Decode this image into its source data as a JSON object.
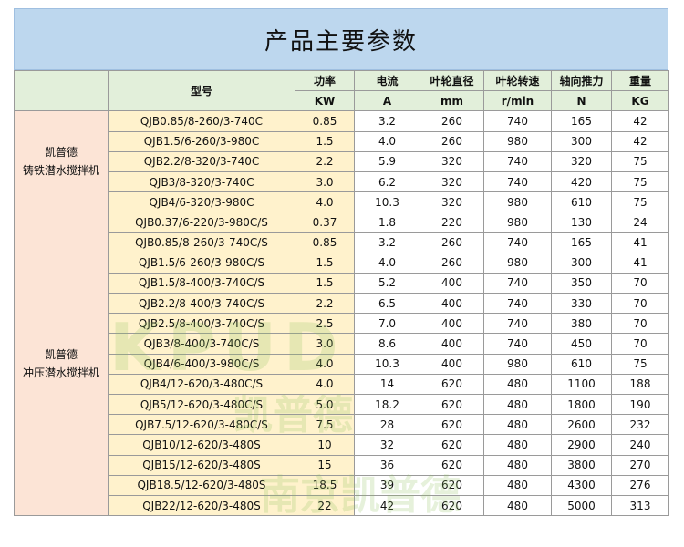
{
  "title": "产品主要参数",
  "header": {
    "category_blank": "",
    "model": "型号",
    "cols": [
      {
        "name": "功率",
        "unit": "KW"
      },
      {
        "name": "电流",
        "unit": "A"
      },
      {
        "name": "叶轮直径",
        "unit": "mm"
      },
      {
        "name": "叶轮转速",
        "unit": "r/min"
      },
      {
        "name": "轴向推力",
        "unit": "N"
      },
      {
        "name": "重量",
        "unit": "KG"
      }
    ]
  },
  "groups": [
    {
      "label_line1": "凯普德",
      "label_line2": "铸铁潜水搅拌机",
      "rows": [
        [
          "QJB0.85/8-260/3-740C",
          "0.85",
          "3.2",
          "260",
          "740",
          "165",
          "42"
        ],
        [
          "QJB1.5/6-260/3-980C",
          "1.5",
          "4.0",
          "260",
          "980",
          "300",
          "42"
        ],
        [
          "QJB2.2/8-320/3-740C",
          "2.2",
          "5.9",
          "320",
          "740",
          "320",
          "75"
        ],
        [
          "QJB3/8-320/3-740C",
          "3.0",
          "6.2",
          "320",
          "740",
          "420",
          "75"
        ],
        [
          "QJB4/6-320/3-980C",
          "4.0",
          "10.3",
          "320",
          "980",
          "610",
          "75"
        ]
      ]
    },
    {
      "label_line1": "凯普德",
      "label_line2": "冲压潜水搅拌机",
      "rows": [
        [
          "QJB0.37/6-220/3-980C/S",
          "0.37",
          "1.8",
          "220",
          "980",
          "130",
          "24"
        ],
        [
          "QJB0.85/8-260/3-740C/S",
          "0.85",
          "3.2",
          "260",
          "740",
          "165",
          "41"
        ],
        [
          "QJB1.5/6-260/3-980C/S",
          "1.5",
          "4.0",
          "260",
          "980",
          "300",
          "41"
        ],
        [
          "QJB1.5/8-400/3-740C/S",
          "1.5",
          "5.2",
          "400",
          "740",
          "350",
          "70"
        ],
        [
          "QJB2.2/8-400/3-740C/S",
          "2.2",
          "6.5",
          "400",
          "740",
          "330",
          "70"
        ],
        [
          "QJB2.5/8-400/3-740C/S",
          "2.5",
          "7.0",
          "400",
          "740",
          "380",
          "70"
        ],
        [
          "QJB3/8-400/3-740C/S",
          "3.0",
          "8.6",
          "400",
          "740",
          "450",
          "70"
        ],
        [
          "QJB4/6-400/3-980C/S",
          "4.0",
          "10.3",
          "400",
          "980",
          "610",
          "75"
        ],
        [
          "QJB4/12-620/3-480C/S",
          "4.0",
          "14",
          "620",
          "480",
          "1100",
          "188"
        ],
        [
          "QJB5/12-620/3-480C/S",
          "5.0",
          "18.2",
          "620",
          "480",
          "1800",
          "190"
        ],
        [
          "QJB7.5/12-620/3-480C/S",
          "7.5",
          "28",
          "620",
          "480",
          "2600",
          "232"
        ],
        [
          "QJB10/12-620/3-480S",
          "10",
          "32",
          "620",
          "480",
          "2900",
          "240"
        ],
        [
          "QJB15/12-620/3-480S",
          "15",
          "36",
          "620",
          "480",
          "3800",
          "270"
        ],
        [
          "QJB18.5/12-620/3-480S",
          "18.5",
          "39",
          "620",
          "480",
          "4300",
          "276"
        ],
        [
          "QJB22/12-620/3-480S",
          "22",
          "42",
          "620",
          "480",
          "5000",
          "313"
        ]
      ]
    }
  ],
  "watermark": {
    "logo_text": "KPUD",
    "line1": "凯普德",
    "line2": "南京凯普德"
  }
}
